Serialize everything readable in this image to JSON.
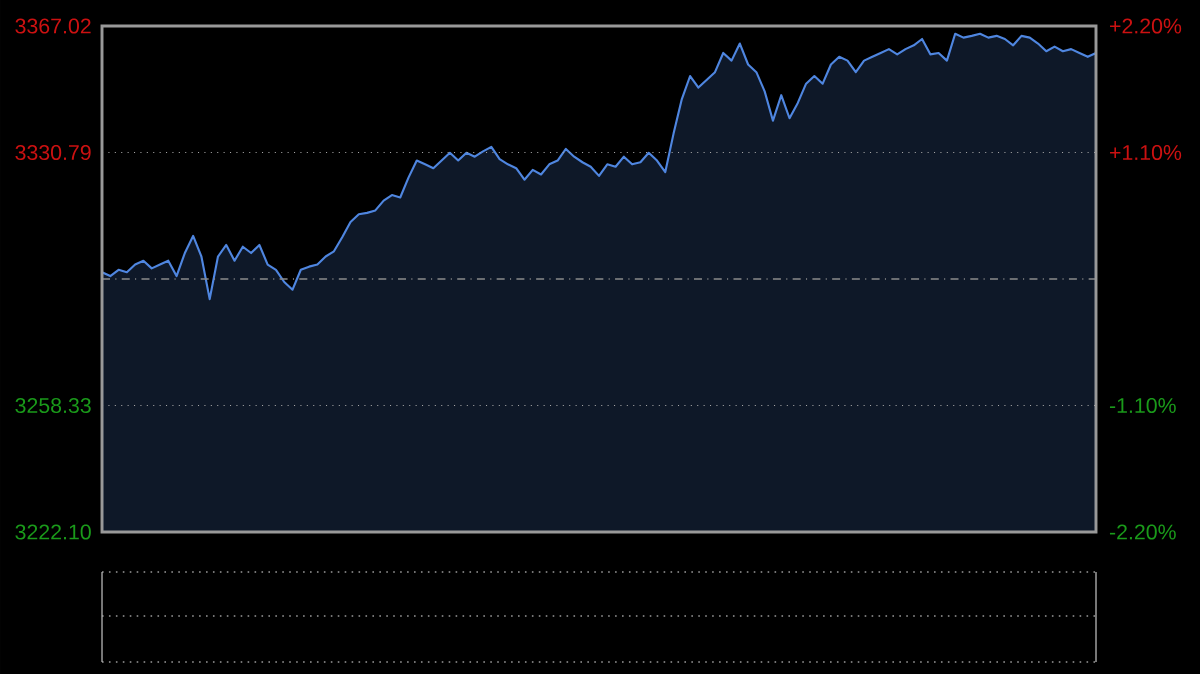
{
  "chart_data": {
    "type": "area",
    "categories": [
      null,
      null,
      null,
      null,
      null,
      null,
      null,
      null,
      null,
      null,
      null,
      null,
      null,
      null,
      null,
      null,
      null,
      null,
      null,
      null,
      null,
      null,
      null,
      null,
      null,
      null,
      null,
      null,
      null,
      null,
      null,
      null,
      null,
      null,
      null,
      null,
      null,
      null,
      null,
      null,
      null,
      null,
      null,
      null,
      null,
      null,
      null,
      null,
      null,
      null,
      null,
      null,
      null,
      null,
      null,
      null,
      null,
      null,
      null,
      null,
      null,
      null,
      null,
      null,
      null,
      null,
      null,
      null,
      null,
      null,
      null,
      null,
      null,
      null,
      null,
      null,
      null,
      null,
      null,
      null,
      null,
      null,
      null,
      null,
      null,
      null,
      null,
      null,
      null,
      null,
      null,
      null,
      null,
      null,
      null,
      null,
      null,
      null,
      null,
      null,
      null,
      null,
      null,
      null,
      null,
      null,
      null,
      null,
      null,
      null,
      null,
      null,
      null,
      null,
      null,
      null,
      null,
      null,
      null,
      null,
      null
    ],
    "series": [
      {
        "color": "#4f86e0",
        "values": [
          3296.5,
          3295.4,
          3297.2,
          3296.5,
          3298.7,
          3299.8,
          3297.6,
          3298.7,
          3299.8,
          3295.4,
          3302.0,
          3306.9,
          3301.0,
          3288.8,
          3301.0,
          3304.3,
          3299.8,
          3303.8,
          3302.0,
          3304.3,
          3298.7,
          3297.2,
          3293.7,
          3291.5,
          3297.2,
          3298.1,
          3298.7,
          3301.0,
          3302.5,
          3306.5,
          3310.9,
          3313.1,
          3313.5,
          3314.2,
          3317.0,
          3318.6,
          3317.9,
          3323.6,
          3328.5,
          3327.4,
          3326.3,
          3328.5,
          3330.7,
          3328.5,
          3330.7,
          3329.6,
          3331.1,
          3332.4,
          3328.9,
          3327.4,
          3326.3,
          3323.0,
          3325.8,
          3324.5,
          3327.4,
          3328.5,
          3331.8,
          3329.6,
          3328.0,
          3326.7,
          3324.1,
          3327.4,
          3326.7,
          3329.6,
          3327.4,
          3328.0,
          3330.7,
          3328.5,
          3325.2,
          3336.2,
          3346.1,
          3352.7,
          3349.4,
          3351.6,
          3353.8,
          3359.3,
          3357.1,
          3362.0,
          3356.0,
          3353.8,
          3348.3,
          3339.9,
          3347.2,
          3340.6,
          3345.0,
          3350.5,
          3352.7,
          3350.5,
          3356.0,
          3358.2,
          3357.1,
          3353.8,
          3357.1,
          3358.2,
          3359.3,
          3360.4,
          3358.9,
          3360.4,
          3361.5,
          3363.3,
          3358.9,
          3359.3,
          3357.1,
          3364.8,
          3363.7,
          3364.2,
          3364.8,
          3363.7,
          3364.2,
          3363.3,
          3361.5,
          3364.2,
          3363.7,
          3362.0,
          3359.8,
          3361.1,
          3359.8,
          3360.4,
          3359.3,
          3358.2,
          3359.3
        ]
      }
    ],
    "ylim": [
      3222.1,
      3367.02
    ],
    "yticks": [
      {
        "value": 3222.1,
        "label": "3222.10"
      },
      {
        "value": 3258.33,
        "label": "3258.33"
      },
      {
        "value": 3330.79,
        "label": "3330.79"
      },
      {
        "value": 3367.02,
        "label": "3367.02"
      }
    ],
    "y2lim": [
      -2.2,
      2.2
    ],
    "y2ticks": [
      {
        "value": -2.2,
        "label": "-2.20%"
      },
      {
        "value": -1.1,
        "label": "-1.10%"
      },
      {
        "value": 1.1,
        "label": "+1.10%"
      },
      {
        "value": 2.2,
        "label": "+2.20%"
      }
    ],
    "ref_lines": [
      {
        "axis": "y",
        "value": 3294.56,
        "color": "#8a8a8a",
        "line_style": "dashed"
      }
    ],
    "grid": "y"
  }
}
